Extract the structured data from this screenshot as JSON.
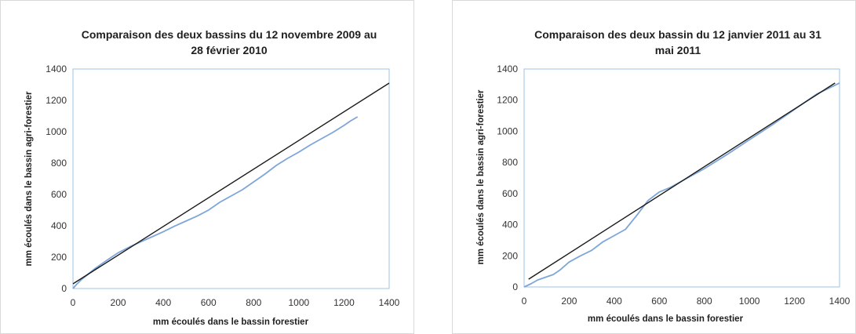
{
  "chart_data": [
    {
      "type": "line",
      "title_lines": [
        "Comparaison  des deux bassins du  12 novembre 2009 au",
        "28 février 2010"
      ],
      "xlabel": "mm écoulés dans le bassin forestier",
      "ylabel": "mm écoulés dans le bassin agri-forestier",
      "xlim": [
        0,
        1400
      ],
      "ylim": [
        0,
        1400
      ],
      "xticks": [
        "0",
        "200",
        "400",
        "600",
        "800",
        "1000",
        "1200",
        "1400"
      ],
      "yticks": [
        "0",
        "200",
        "400",
        "600",
        "800",
        "1000",
        "1200",
        "1400"
      ],
      "grid": false,
      "legend": "none",
      "series": [
        {
          "color": "#7ea6d8",
          "x": [
            0,
            15,
            40,
            70,
            100,
            150,
            200,
            250,
            300,
            350,
            400,
            450,
            500,
            550,
            600,
            650,
            700,
            750,
            800,
            850,
            900,
            950,
            1000,
            1050,
            1100,
            1150,
            1200,
            1230,
            1260
          ],
          "y": [
            0,
            25,
            60,
            95,
            130,
            180,
            228,
            265,
            298,
            330,
            362,
            398,
            430,
            462,
            500,
            550,
            590,
            630,
            680,
            730,
            785,
            830,
            870,
            915,
            955,
            995,
            1040,
            1070,
            1095
          ]
        },
        {
          "color": "#1a1a1a",
          "x": [
            0,
            1400
          ],
          "y": [
            30,
            1310
          ]
        }
      ]
    },
    {
      "type": "line",
      "title_lines": [
        "Comparaison  des deux bassin du 12 janvier 2011 au 31",
        "mai 2011"
      ],
      "xlabel": "mm écoulés dans le bassin forestier",
      "ylabel": "mm écoulés dans le bassin agri-forestier",
      "xlim": [
        0,
        1400
      ],
      "ylim": [
        0,
        1400
      ],
      "xticks": [
        "0",
        "200",
        "400",
        "600",
        "800",
        "1000",
        "1200",
        "1400"
      ],
      "yticks": [
        "0",
        "200",
        "400",
        "600",
        "800",
        "1000",
        "1200",
        "1400"
      ],
      "grid": false,
      "legend": "none",
      "series": [
        {
          "color": "#7ea6d8",
          "x": [
            0,
            30,
            60,
            100,
            130,
            160,
            200,
            250,
            300,
            350,
            400,
            450,
            500,
            550,
            600,
            650,
            700,
            800,
            900,
            1000,
            1100,
            1200,
            1300,
            1400
          ],
          "y": [
            0,
            20,
            45,
            65,
            80,
            110,
            160,
            200,
            235,
            290,
            330,
            370,
            460,
            555,
            610,
            640,
            680,
            760,
            850,
            945,
            1040,
            1140,
            1240,
            1310
          ]
        },
        {
          "color": "#1a1a1a",
          "x": [
            20,
            1380
          ],
          "y": [
            50,
            1310
          ]
        }
      ]
    }
  ]
}
